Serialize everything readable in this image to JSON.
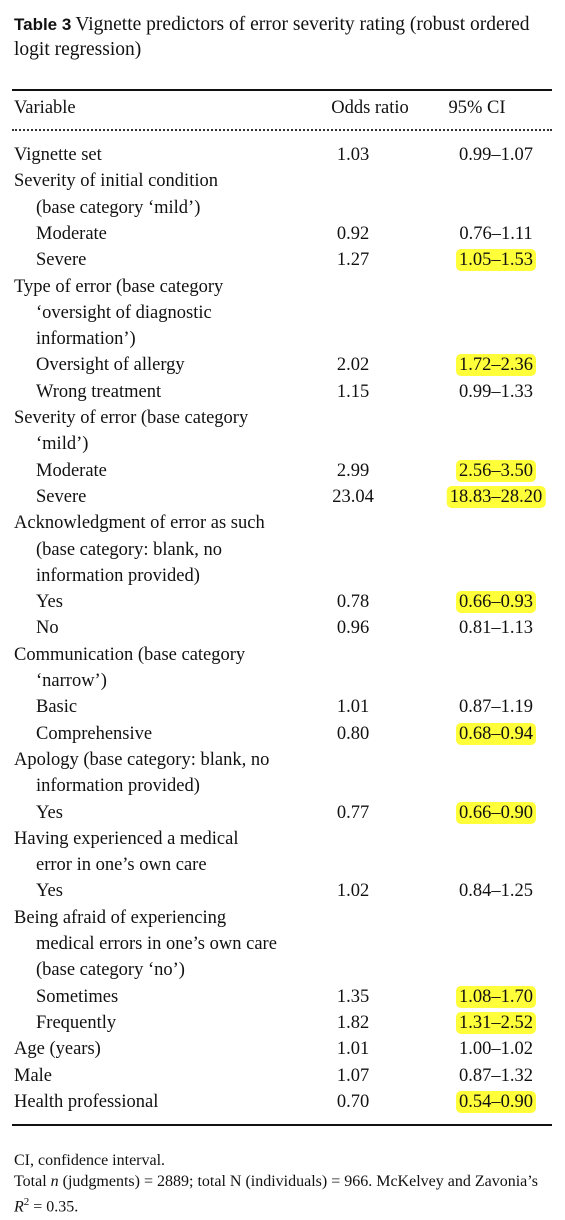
{
  "title": {
    "label": "Table 3",
    "text": "Vignette predictors of error severity rating (robust ordered logit regression)"
  },
  "table": {
    "columns": [
      "Variable",
      "Odds ratio",
      "95% CI"
    ],
    "rows": [
      {
        "lines": [
          "Vignette set"
        ],
        "odds": "1.03",
        "ci": "0.99–1.07"
      },
      {
        "lines": [
          "Severity of initial condition",
          "(base category ‘mild’)"
        ]
      },
      {
        "lines": [
          "Moderate"
        ],
        "indent": true,
        "odds": "0.92",
        "ci": "0.76–1.11"
      },
      {
        "lines": [
          "Severe"
        ],
        "indent": true,
        "odds": "1.27",
        "ci": "1.05–1.53",
        "highlight": true
      },
      {
        "lines": [
          "Type of error (base category",
          "‘oversight of diagnostic",
          "information’)"
        ]
      },
      {
        "lines": [
          "Oversight of allergy"
        ],
        "indent": true,
        "odds": "2.02",
        "ci": "1.72–2.36",
        "highlight": true
      },
      {
        "lines": [
          "Wrong treatment"
        ],
        "indent": true,
        "odds": "1.15",
        "ci": "0.99–1.33"
      },
      {
        "lines": [
          "Severity of error (base category",
          "‘mild’)"
        ]
      },
      {
        "lines": [
          "Moderate"
        ],
        "indent": true,
        "odds": "2.99",
        "ci": "2.56–3.50",
        "highlight": true
      },
      {
        "lines": [
          "Severe"
        ],
        "indent": true,
        "odds": "23.04",
        "ci": "18.83–28.20",
        "highlight": true
      },
      {
        "lines": [
          "Acknowledgment of error as such",
          "(base category: blank, no",
          "information provided)"
        ]
      },
      {
        "lines": [
          "Yes"
        ],
        "indent": true,
        "odds": "0.78",
        "ci": "0.66–0.93",
        "highlight": true
      },
      {
        "lines": [
          "No"
        ],
        "indent": true,
        "odds": "0.96",
        "ci": "0.81–1.13"
      },
      {
        "lines": [
          "Communication (base category",
          "‘narrow’)"
        ]
      },
      {
        "lines": [
          "Basic"
        ],
        "indent": true,
        "odds": "1.01",
        "ci": "0.87–1.19"
      },
      {
        "lines": [
          "Comprehensive"
        ],
        "indent": true,
        "odds": "0.80",
        "ci": "0.68–0.94",
        "highlight": true
      },
      {
        "lines": [
          "Apology (base category: blank, no",
          "information provided)"
        ]
      },
      {
        "lines": [
          "Yes"
        ],
        "indent": true,
        "odds": "0.77",
        "ci": "0.66–0.90",
        "highlight": true
      },
      {
        "lines": [
          "Having experienced a medical",
          "error in one’s own care"
        ]
      },
      {
        "lines": [
          "Yes"
        ],
        "indent": true,
        "odds": "1.02",
        "ci": "0.84–1.25"
      },
      {
        "lines": [
          "Being afraid of experiencing",
          "medical errors in one’s own care",
          "(base category ‘no’)"
        ]
      },
      {
        "lines": [
          "Sometimes"
        ],
        "indent": true,
        "odds": "1.35",
        "ci": "1.08–1.70",
        "highlight": true
      },
      {
        "lines": [
          "Frequently"
        ],
        "indent": true,
        "odds": "1.82",
        "ci": "1.31–2.52",
        "highlight": true
      },
      {
        "lines": [
          "Age (years)"
        ],
        "odds": "1.01",
        "ci": "1.00–1.02"
      },
      {
        "lines": [
          "Male"
        ],
        "odds": "1.07",
        "ci": "0.87–1.32"
      },
      {
        "lines": [
          "Health professional"
        ],
        "odds": "0.70",
        "ci": "0.54–0.90",
        "highlight": true
      }
    ]
  },
  "notes": [
    {
      "parts": [
        "CI, confidence interval."
      ]
    },
    {
      "parts": [
        "Total ",
        "n",
        " (judgments) = 2889; total N (individuals) = 966. McKelvey and Zavonia’s ",
        "R",
        "2",
        " = 0.35."
      ]
    }
  ]
}
